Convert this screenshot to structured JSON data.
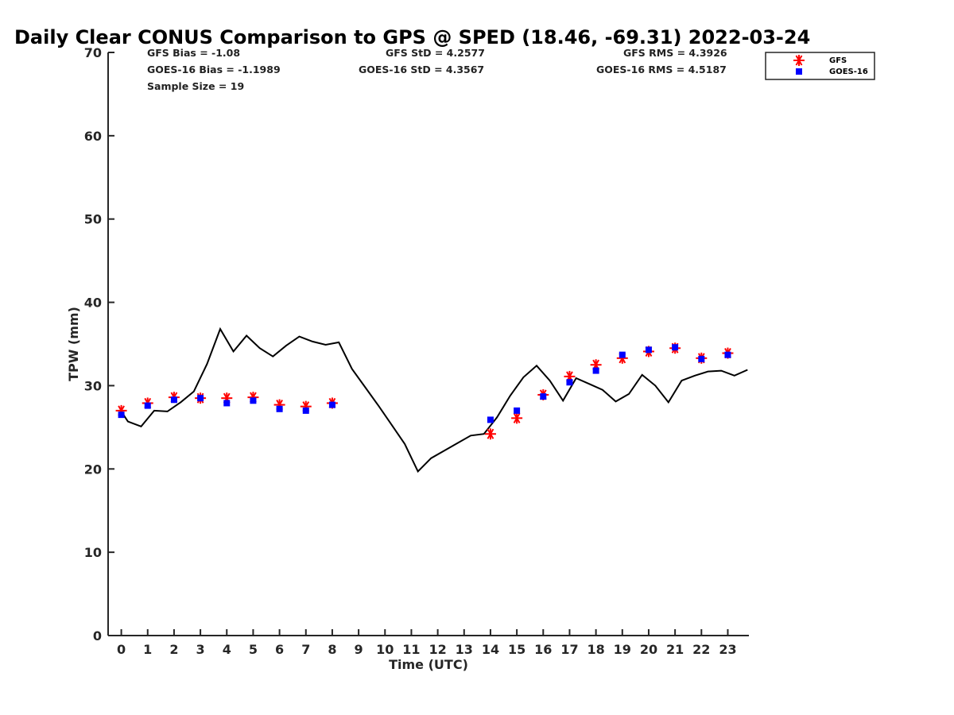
{
  "chart_data": {
    "type": "scatter",
    "title": "Daily Clear CONUS Comparison to GPS @ SPED (18.46, -69.31) 2022-03-24",
    "xlabel": "Time (UTC)",
    "ylabel": "TPW (mm)",
    "xlim": [
      -0.5,
      23.8
    ],
    "ylim": [
      0,
      70
    ],
    "xticks": [
      "0",
      "1",
      "2",
      "3",
      "4",
      "5",
      "6",
      "7",
      "8",
      "9",
      "10",
      "11",
      "12",
      "13",
      "14",
      "15",
      "16",
      "17",
      "18",
      "19",
      "20",
      "21",
      "22",
      "23"
    ],
    "yticks": [
      "0",
      "10",
      "20",
      "30",
      "40",
      "50",
      "60",
      "70"
    ],
    "grid": false,
    "legend_position": "top-right",
    "stats": {
      "gfs_bias": "GFS Bias = -1.08",
      "goes_bias": "GOES-16 Bias = -1.1989",
      "sample_size": "Sample Size = 19",
      "gfs_std": "GFS StD = 4.2577",
      "goes_std": "GOES-16 StD = 4.3567",
      "gfs_rms": "GFS RMS = 4.3926",
      "goes_rms": "GOES-16 RMS = 4.5187"
    },
    "series": [
      {
        "name": "GFS",
        "marker": "asterisk",
        "color": "#ff0000",
        "x": [
          0,
          1,
          2,
          3,
          4,
          5,
          6,
          7,
          8,
          14,
          15,
          16,
          17,
          18,
          19,
          20,
          21,
          22,
          23
        ],
        "y": [
          27.0,
          27.9,
          28.6,
          28.5,
          28.5,
          28.6,
          27.7,
          27.5,
          27.9,
          24.2,
          26.1,
          28.9,
          31.1,
          32.5,
          33.3,
          34.1,
          34.5,
          33.3,
          33.9
        ]
      },
      {
        "name": "GOES-16",
        "marker": "square",
        "color": "#0000ff",
        "x": [
          0,
          1,
          2,
          3,
          4,
          5,
          6,
          7,
          8,
          14,
          15,
          16,
          17,
          18,
          19,
          20,
          21,
          22,
          23
        ],
        "y": [
          26.5,
          27.6,
          28.3,
          28.5,
          27.9,
          28.2,
          27.2,
          27.0,
          27.7,
          25.9,
          27.0,
          28.7,
          30.4,
          31.8,
          33.7,
          34.3,
          34.6,
          33.2,
          33.7
        ]
      },
      {
        "name": "",
        "marker": "line",
        "color": "#000000",
        "x": [
          0,
          0.25,
          0.75,
          1.25,
          1.75,
          2.25,
          2.75,
          3.25,
          3.75,
          4.25,
          4.75,
          5.25,
          5.75,
          6.25,
          6.75,
          7.25,
          7.75,
          8.25,
          8.75,
          9.25,
          9.75,
          10.25,
          10.75,
          11.25,
          11.75,
          12.25,
          12.75,
          13.25,
          13.75,
          14.25,
          14.75,
          15.25,
          15.75,
          16.25,
          16.75,
          17.25,
          17.75,
          18.25,
          18.75,
          19.25,
          19.75,
          20.25,
          20.75,
          21.25,
          21.75,
          22.25,
          22.75,
          23.25,
          23.75
        ],
        "y": [
          26.9,
          25.7,
          25.1,
          27.0,
          26.9,
          28.0,
          29.3,
          32.6,
          36.8,
          34.1,
          36.0,
          34.5,
          33.5,
          34.8,
          35.9,
          35.3,
          34.9,
          35.2,
          32.0,
          29.8,
          27.6,
          25.3,
          23.0,
          19.7,
          21.3,
          22.2,
          23.1,
          24.0,
          24.2,
          26.2,
          28.8,
          31.0,
          32.4,
          30.6,
          28.2,
          30.9,
          30.2,
          29.5,
          28.1,
          29.0,
          31.3,
          30.0,
          28.0,
          30.6,
          31.2,
          31.7,
          31.8,
          31.2,
          31.9
        ]
      }
    ]
  }
}
